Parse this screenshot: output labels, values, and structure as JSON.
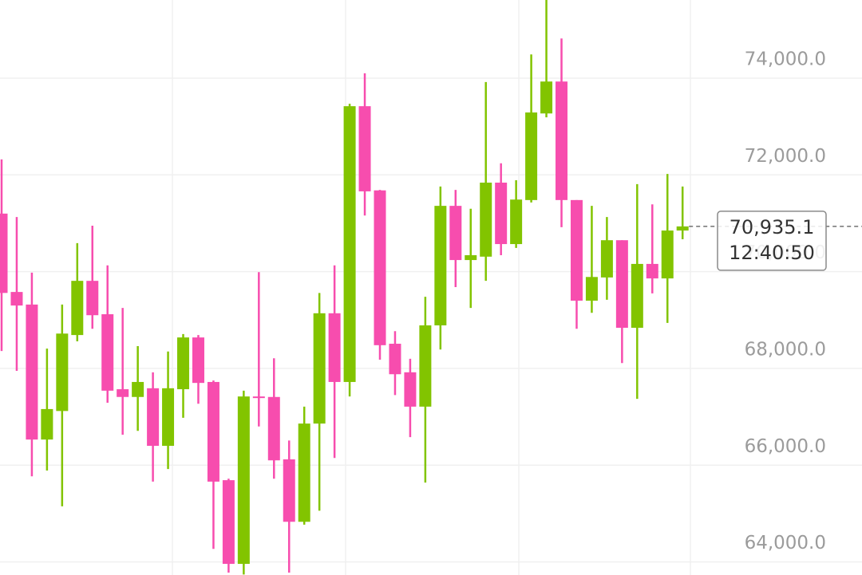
{
  "chart_data": {
    "type": "candlestick",
    "up_color": "#82c400",
    "down_color": "#f74dae",
    "ylim": [
      63730,
      75615
    ],
    "yticks": [
      {
        "value": 64000,
        "label": "64,000.0"
      },
      {
        "value": 66000,
        "label": "66,000.0"
      },
      {
        "value": 68000,
        "label": "68,000.0"
      },
      {
        "value": 70000,
        "label": "70,000.0"
      },
      {
        "value": 72000,
        "label": "72,000.0"
      },
      {
        "value": 74000,
        "label": "74,000.0"
      }
    ],
    "grid": true,
    "open": [
      71200,
      69580,
      69320,
      66530,
      67120,
      68690,
      69810,
      69120,
      67570,
      67410,
      67590,
      66400,
      67570,
      68640,
      67720,
      65690,
      63960,
      67420,
      67410,
      66120,
      64830,
      66860,
      69140,
      67720,
      73420,
      71680,
      68510,
      67920,
      67210,
      68890,
      71360,
      70240,
      70310,
      71840,
      70570,
      71480,
      73270,
      73930,
      71480,
      69400,
      69880,
      70650,
      68840,
      70160,
      69860,
      70850
    ],
    "high": [
      72320,
      71130,
      69980,
      68410,
      69320,
      70590,
      70950,
      70130,
      69250,
      68460,
      67920,
      68350,
      68710,
      68690,
      67750,
      65720,
      67540,
      69990,
      68210,
      66510,
      67210,
      69560,
      70130,
      73470,
      74100,
      71690,
      68770,
      68200,
      69480,
      71760,
      71690,
      71300,
      73920,
      72240,
      71890,
      74490,
      75620,
      74820,
      71480,
      71360,
      71130,
      70650,
      71810,
      71390,
      72020,
      71760
    ],
    "low": [
      68360,
      67950,
      65770,
      65890,
      65150,
      68560,
      68820,
      67290,
      66630,
      66710,
      65660,
      65920,
      66980,
      67270,
      64270,
      63780,
      63740,
      66800,
      65720,
      63780,
      64770,
      65060,
      66150,
      67420,
      71160,
      68180,
      67450,
      66580,
      65640,
      68390,
      69680,
      69250,
      69810,
      70340,
      70490,
      71430,
      73190,
      70920,
      68820,
      69150,
      69420,
      68110,
      67370,
      69550,
      68940,
      70670
    ],
    "close": [
      69560,
      69300,
      66530,
      67160,
      68720,
      69810,
      69100,
      67540,
      67410,
      67720,
      66400,
      67590,
      68640,
      67700,
      65660,
      63960,
      67420,
      67390,
      66100,
      64830,
      66860,
      69140,
      67720,
      73420,
      71660,
      68480,
      67880,
      67210,
      68890,
      71360,
      70240,
      70340,
      71840,
      70570,
      71490,
      73290,
      73930,
      71480,
      69400,
      69890,
      70650,
      68840,
      70160,
      69860,
      70850,
      70935.1
    ],
    "price_line": {
      "value": 70935.1,
      "label": "70,935.1"
    },
    "countdown": "12:40:50"
  }
}
